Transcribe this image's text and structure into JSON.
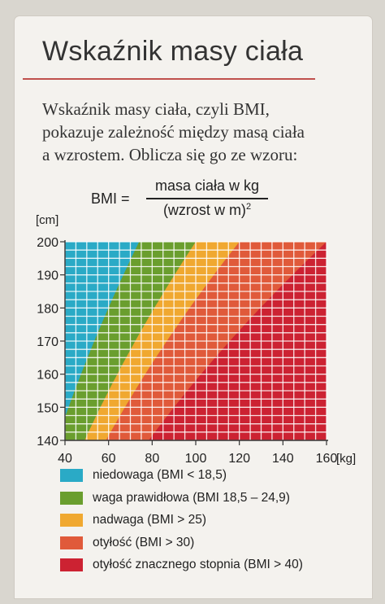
{
  "heading": "Wskaźnik masy ciała",
  "intro": {
    "lines": [
      "Wskaźnik masy ciała, czyli BMI,",
      "pokazuje zależność między masą ciała",
      "a wzrostem. Oblicza się go ze wzoru:"
    ]
  },
  "formula": {
    "lhs": "BMI =",
    "numerator": "masa ciała w kg",
    "denominator_base": "(wzrost w m)",
    "denominator_exp": "2"
  },
  "chart_data": {
    "type": "heatmap",
    "title": "",
    "xlabel": "[kg]",
    "ylabel": "[cm]",
    "xlim": [
      40,
      160
    ],
    "ylim": [
      140,
      200
    ],
    "x_ticks": [
      40,
      60,
      80,
      100,
      120,
      140,
      160
    ],
    "y_ticks": [
      140,
      150,
      160,
      170,
      180,
      190,
      200
    ],
    "grid": true,
    "legend_position": "bottom",
    "bmi_thresholds": [
      18.5,
      25,
      30,
      40
    ],
    "categories": [
      {
        "label": "niedowaga (BMI < 18,5)",
        "color": "#2aaac6",
        "bmi_min": 0,
        "bmi_max": 18.5
      },
      {
        "label": "waga prawidłowa (BMI 18,5 – 24,9)",
        "color": "#6a9e2e",
        "bmi_min": 18.5,
        "bmi_max": 25
      },
      {
        "label": "nadwaga (BMI > 25)",
        "color": "#f0a830",
        "bmi_min": 25,
        "bmi_max": 30
      },
      {
        "label": "otyłość (BMI > 30)",
        "color": "#e05a3a",
        "bmi_min": 30,
        "bmi_max": 40
      },
      {
        "label": "otyłość znacznego stopnia (BMI > 40)",
        "color": "#cc2232",
        "bmi_min": 40,
        "bmi_max": 100
      }
    ]
  }
}
